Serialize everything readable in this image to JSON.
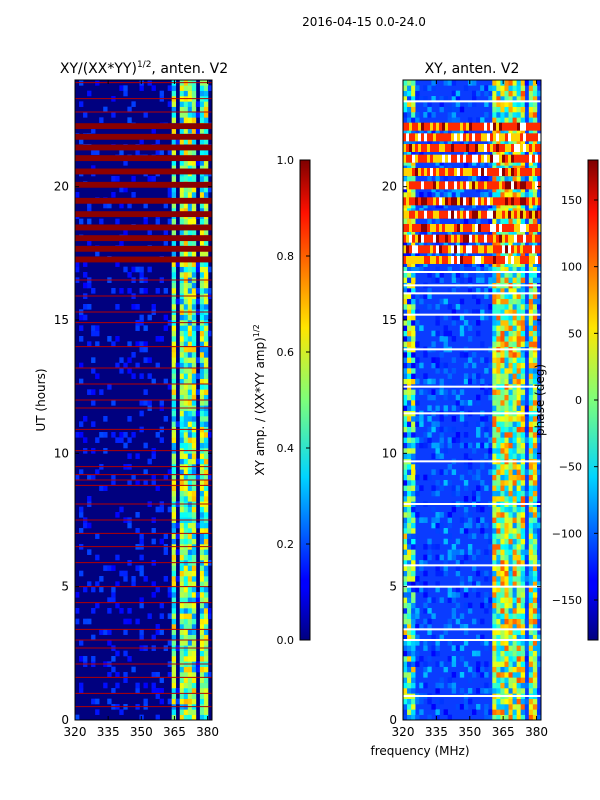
{
  "figure_title": "2016-04-15 0.0-24.0",
  "chart_data": [
    {
      "type": "heatmap",
      "title": "XY/(XX*YY)",
      "title_exponent": "1/2",
      "title_suffix": ", anten. V2",
      "xlabel": "",
      "ylabel": "UT (hours)",
      "xlim": [
        320,
        382
      ],
      "ylim": [
        0,
        24
      ],
      "x_ticks": [
        320,
        335,
        350,
        365,
        380
      ],
      "y_ticks": [
        0,
        5,
        10,
        15,
        20
      ],
      "background": "#00007f",
      "colorbar": {
        "label": "XY amp. / (XX*YY amp)",
        "label_exponent": "1/2",
        "range": [
          0.0,
          1.0
        ],
        "ticks": [
          "0.0",
          "0.2",
          "0.4",
          "0.6",
          "0.8",
          "1.0"
        ],
        "tick_values": [
          0.0,
          0.2,
          0.4,
          0.6,
          0.8,
          1.0
        ]
      },
      "saturated_hours": [
        17.2,
        17.6,
        18.0,
        18.4,
        18.9,
        19.4,
        20.0,
        20.5,
        21.0,
        21.4,
        21.8,
        22.2
      ],
      "flag_line_hours": [
        0.5,
        1.0,
        1.6,
        2.1,
        2.7,
        3.0,
        3.4,
        4.4,
        5.0,
        5.9,
        6.5,
        7.0,
        7.5,
        8.1,
        8.8,
        9.0,
        9.2,
        9.5,
        10.1,
        10.9,
        11.7,
        12.0,
        12.6,
        13.2,
        14.0,
        14.9,
        15.3,
        15.9,
        16.5,
        22.8,
        23.3,
        23.9
      ],
      "hot_band_mhz": [
        [
          363,
          366
        ],
        [
          368,
          374
        ],
        [
          376,
          380
        ]
      ]
    },
    {
      "type": "heatmap",
      "title": "XY, anten. V2",
      "xlabel": "frequency (MHz)",
      "ylabel": "",
      "xlim": [
        320,
        382
      ],
      "ylim": [
        0,
        24
      ],
      "x_ticks": [
        320,
        335,
        350,
        365,
        380
      ],
      "y_ticks": [
        0,
        5,
        10,
        15,
        20
      ],
      "background": "#0a3cff",
      "colorbar": {
        "label": "phase (deg)",
        "range": [
          -180,
          180
        ],
        "ticks": [
          "−150",
          "−100",
          "−50",
          "0",
          "50",
          "100",
          "150"
        ],
        "tick_values": [
          -150,
          -100,
          -50,
          0,
          50,
          100,
          150
        ]
      },
      "noisy_hours": [
        17.2,
        17.6,
        18.0,
        18.4,
        18.9,
        19.4,
        20.0,
        20.5,
        21.0,
        21.4,
        21.8,
        22.2
      ],
      "gap_hours": [
        0.9,
        3.0,
        3.4,
        5.0,
        5.8,
        8.1,
        9.7,
        11.5,
        12.5,
        13.9,
        15.2,
        16.0,
        16.3,
        16.8,
        23.2
      ],
      "hot_band_mhz": [
        [
          360,
          374
        ],
        [
          376,
          380
        ]
      ]
    }
  ]
}
